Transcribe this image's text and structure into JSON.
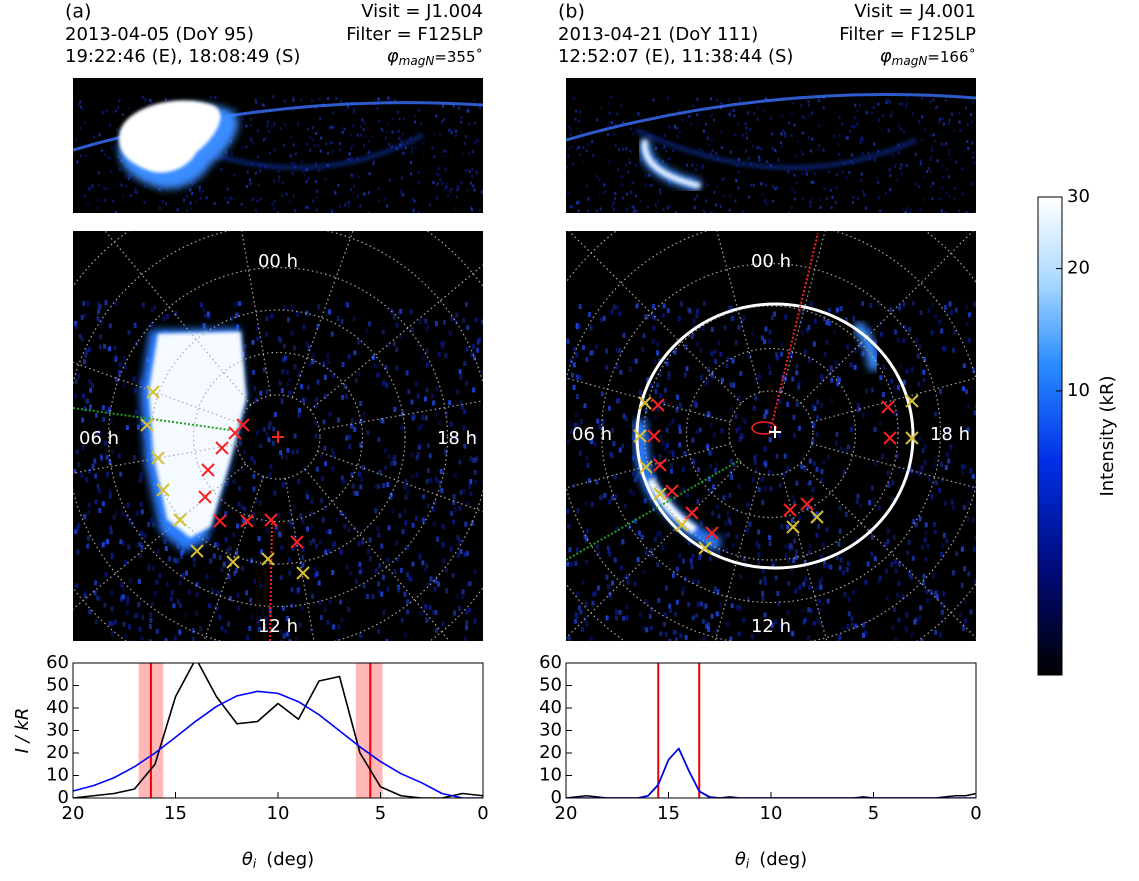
{
  "panels": [
    {
      "label": "(a)",
      "visit": "Visit = J1.004",
      "date": "2013-04-05 (DoY 95)",
      "filter": "Filter = F125LP",
      "times": "19:22:46 (E), 18:08:49 (S)",
      "phi": {
        "symbol": "φ",
        "subscript": "magN",
        "value": "=355˚"
      },
      "hours": [
        "00 h",
        "06 h",
        "18 h",
        "12 h"
      ]
    },
    {
      "label": "(b)",
      "visit": "Visit = J4.001",
      "date": "2013-04-21 (DoY 111)",
      "filter": "Filter = F125LP",
      "times": "12:52:07 (E), 11:38:44 (S)",
      "phi": {
        "symbol": "φ",
        "subscript": "magN",
        "value": "=166˚"
      },
      "hours": [
        "00 h",
        "06 h",
        "18 h",
        "12 h"
      ]
    }
  ],
  "colorbar": {
    "label": "Intensity (kR)",
    "lim": [
      2,
      30
    ],
    "ticks": [
      10,
      20,
      30
    ],
    "log": true
  },
  "chart_data": [
    {
      "type": "line",
      "x": [
        20,
        19,
        18,
        17,
        16,
        15,
        14,
        13,
        12,
        11,
        10,
        9,
        8,
        7,
        6,
        5,
        4,
        3,
        2,
        1,
        0
      ],
      "series": [
        {
          "color": "#000000",
          "values": [
            0,
            1,
            2,
            4,
            15,
            45,
            62,
            45,
            33,
            34,
            42,
            35,
            52,
            54,
            20,
            5,
            1,
            0,
            0,
            2,
            1
          ]
        },
        {
          "color": "#0000ff",
          "values": [
            3.1,
            5.5,
            9.0,
            13.9,
            20.0,
            27.0,
            34.2,
            40.7,
            45.4,
            47.4,
            46.5,
            42.8,
            37.0,
            29.9,
            22.7,
            16.2,
            10.8,
            6.8,
            2,
            0,
            0
          ]
        }
      ],
      "xlim": [
        20,
        0
      ],
      "ylim": [
        0,
        60
      ],
      "xticks": [
        20,
        15,
        10,
        5,
        0
      ],
      "yticks": [
        0,
        10,
        20,
        30,
        40,
        50,
        60
      ],
      "xlabel": {
        "symbol": "θ",
        "subscript": "i",
        "unit": "(deg)"
      },
      "ylabel": "I  /  kR",
      "vlines": [
        16.2,
        5.5
      ],
      "vline_color": "#ee0000",
      "bands": [
        [
          16.8,
          15.6
        ],
        [
          6.2,
          4.9
        ]
      ],
      "band_color": "#ffaaaa"
    },
    {
      "type": "line",
      "x": [
        20,
        19.5,
        19,
        18.5,
        18,
        17.5,
        17,
        16.5,
        16,
        15.5,
        15,
        14.5,
        14,
        13.5,
        13,
        12.5,
        12,
        11.5,
        11,
        10.5,
        10,
        9.5,
        9,
        8.5,
        8,
        7.5,
        7,
        6.5,
        6,
        5.5,
        5,
        4.5,
        4,
        3.5,
        3,
        2.5,
        2,
        1.5,
        1,
        0.5,
        0
      ],
      "series": [
        {
          "color": "#000000",
          "values": [
            0,
            0.5,
            1,
            0.5,
            0,
            0,
            0,
            0,
            1,
            6,
            17,
            22,
            12,
            3,
            0.5,
            0,
            0.5,
            0,
            0,
            0,
            0,
            0,
            0,
            0,
            0,
            0,
            0,
            0,
            0,
            0.5,
            0,
            0,
            0,
            0,
            0,
            0,
            0,
            0.5,
            1,
            1,
            2
          ]
        },
        {
          "color": "#0000ff",
          "values": [
            0,
            0,
            0,
            0,
            0,
            0,
            0,
            0,
            0.9,
            5.8,
            17,
            22,
            12,
            3,
            0.3,
            0,
            0,
            0,
            0,
            0,
            0,
            0,
            0,
            0,
            0,
            0,
            0,
            0,
            0,
            0,
            0,
            0,
            0,
            0,
            0,
            0,
            0,
            0,
            0,
            0,
            0
          ]
        }
      ],
      "xlim": [
        20,
        0
      ],
      "ylim": [
        0,
        60
      ],
      "xticks": [
        20,
        15,
        10,
        5,
        0
      ],
      "yticks": [
        0,
        10,
        20,
        30,
        40,
        50,
        60
      ],
      "xlabel": {
        "symbol": "θ",
        "subscript": "i",
        "unit": "(deg)"
      },
      "vlines": [
        15.5,
        13.5
      ],
      "vline_color": "#ee0000"
    }
  ]
}
